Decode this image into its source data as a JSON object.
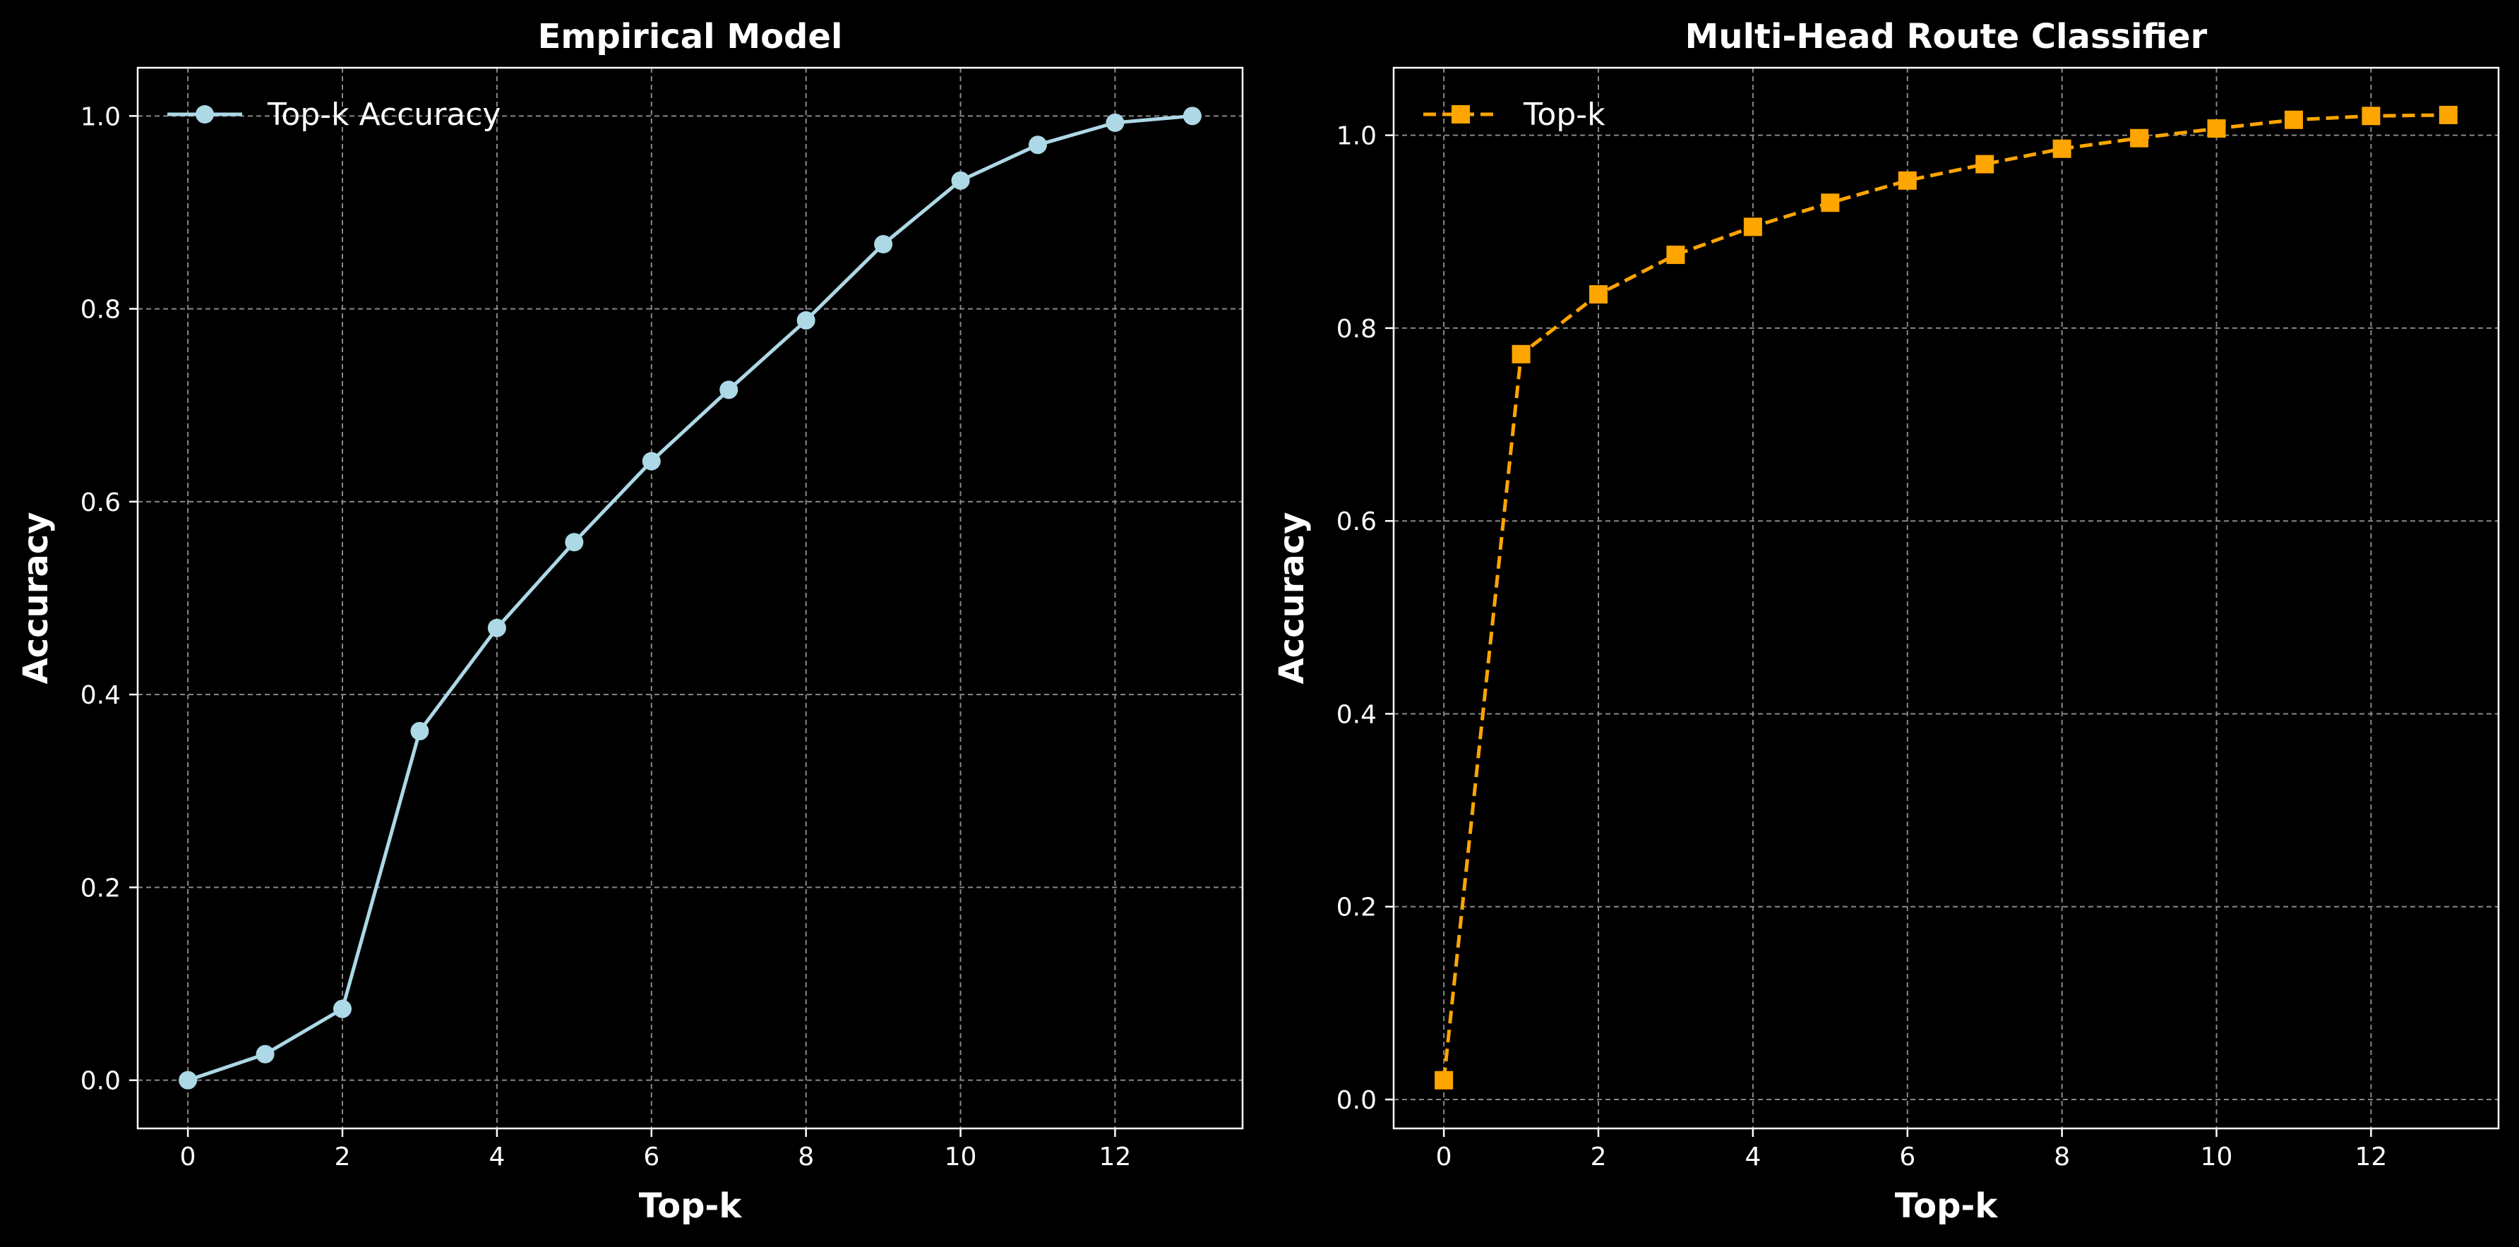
{
  "colors": {
    "background": "#000000",
    "text": "#ffffff",
    "grid": "#888888",
    "series_left": "#add8e6",
    "series_right": "#ffa500"
  },
  "chart_data": [
    {
      "type": "line",
      "title": "Empirical Model",
      "xlabel": "Top-k",
      "ylabel": "Accuracy",
      "xlim": [
        -0.65,
        13.65
      ],
      "ylim": [
        -0.05,
        1.05
      ],
      "xticks": [
        0,
        2,
        4,
        6,
        8,
        10,
        12
      ],
      "yticks": [
        0.0,
        0.2,
        0.4,
        0.6,
        0.8,
        1.0
      ],
      "grid": true,
      "legend_position": "top-left",
      "series": [
        {
          "name": "Top-k Accuracy",
          "marker": "circle",
          "line_style": "solid",
          "color": "#add8e6",
          "x": [
            0,
            1,
            2,
            3,
            4,
            5,
            6,
            7,
            8,
            9,
            10,
            11,
            12,
            13
          ],
          "y": [
            0.0,
            0.027,
            0.074,
            0.362,
            0.469,
            0.558,
            0.642,
            0.716,
            0.788,
            0.867,
            0.933,
            0.97,
            0.993,
            1.0
          ]
        }
      ]
    },
    {
      "type": "line",
      "title": "Multi-Head Route Classifier",
      "xlabel": "Top-k",
      "ylabel": "Accuracy",
      "xlim": [
        -0.65,
        13.65
      ],
      "ylim": [
        -0.03,
        1.07
      ],
      "xticks": [
        0,
        2,
        4,
        6,
        8,
        10,
        12
      ],
      "yticks": [
        0.0,
        0.2,
        0.4,
        0.6,
        0.8,
        1.0
      ],
      "grid": true,
      "legend_position": "top-left",
      "series": [
        {
          "name": "Top-k",
          "marker": "square",
          "line_style": "dashed",
          "color": "#ffa500",
          "x": [
            0,
            1,
            2,
            3,
            4,
            5,
            6,
            7,
            8,
            9,
            10,
            11,
            12,
            13
          ],
          "y": [
            0.02,
            0.773,
            0.835,
            0.876,
            0.905,
            0.93,
            0.953,
            0.97,
            0.986,
            0.997,
            1.007,
            1.016,
            1.02,
            1.021
          ]
        }
      ]
    }
  ]
}
